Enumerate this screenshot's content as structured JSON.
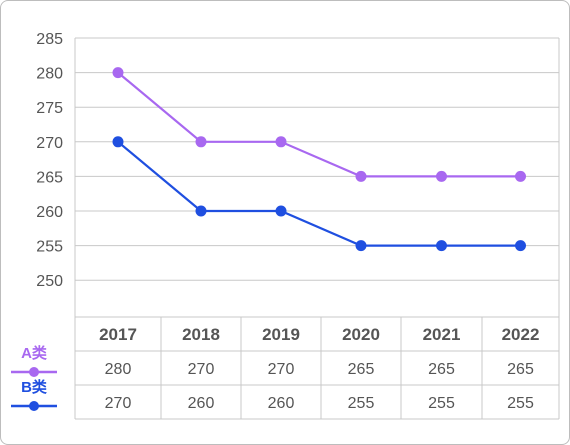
{
  "chart_data": {
    "type": "line",
    "x": [
      "2017",
      "2018",
      "2019",
      "2020",
      "2021",
      "2022"
    ],
    "series": [
      {
        "name": "A类",
        "values": [
          280,
          270,
          270,
          265,
          265,
          265
        ],
        "color": "#a868f0"
      },
      {
        "name": "B类",
        "values": [
          270,
          260,
          260,
          255,
          255,
          255
        ],
        "color": "#1f4fe0"
      }
    ],
    "yticks": [
      250,
      255,
      260,
      265,
      270,
      275,
      280,
      285
    ],
    "ylim": [
      245,
      285
    ],
    "grid": true,
    "legend": "bottom-left",
    "table": true
  }
}
